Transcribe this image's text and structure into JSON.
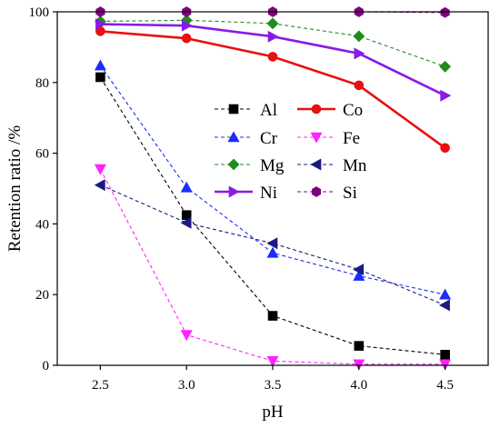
{
  "chart_data": {
    "type": "line",
    "xlabel": "pH",
    "ylabel": "Retention ratio /%",
    "xlim": [
      2.25,
      4.75
    ],
    "ylim": [
      0,
      100
    ],
    "xticks": [
      {
        "value": 2.5,
        "label": "2.5"
      },
      {
        "value": 3.0,
        "label": "3.0"
      },
      {
        "value": 3.5,
        "label": "3.5"
      },
      {
        "value": 4.0,
        "label": "4.0"
      },
      {
        "value": 4.5,
        "label": "4.5"
      }
    ],
    "yticks": [
      {
        "value": 0,
        "label": "0"
      },
      {
        "value": 20,
        "label": "20"
      },
      {
        "value": 40,
        "label": "40"
      },
      {
        "value": 60,
        "label": "60"
      },
      {
        "value": 80,
        "label": "80"
      },
      {
        "value": 100,
        "label": "100"
      }
    ],
    "x": [
      2.5,
      3.0,
      3.5,
      4.0,
      4.5
    ],
    "grid": false,
    "legend_position": "center",
    "series": [
      {
        "name": "Al",
        "values": [
          81.5,
          42.5,
          14,
          5.5,
          3
        ],
        "color": "#000000",
        "marker": "square",
        "dashed": true
      },
      {
        "name": "Co",
        "values": [
          94.5,
          92.5,
          87.3,
          79.2,
          61.5
        ],
        "color": "#e81010",
        "marker": "circle",
        "dashed": false
      },
      {
        "name": "Cr",
        "values": [
          84.8,
          50.3,
          31.8,
          25.3,
          20
        ],
        "color": "#1a2cff",
        "marker": "triangle-up",
        "dashed": true
      },
      {
        "name": "Fe",
        "values": [
          55.5,
          8.6,
          1.2,
          0.3,
          0.3
        ],
        "color": "#ff22ff",
        "marker": "triangle-down",
        "dashed": true
      },
      {
        "name": "Mg",
        "values": [
          97.3,
          97.6,
          96.7,
          93.1,
          84.5
        ],
        "color": "#1e8b1e",
        "marker": "diamond",
        "dashed": true
      },
      {
        "name": "Mn",
        "values": [
          51,
          40.3,
          34.5,
          27.1,
          17
        ],
        "color": "#1a1a80",
        "marker": "triangle-left",
        "dashed": true
      },
      {
        "name": "Ni",
        "values": [
          96.5,
          96.1,
          93,
          88.2,
          76.3
        ],
        "color": "#8a1ae8",
        "marker": "triangle-right",
        "dashed": false
      },
      {
        "name": "Si",
        "values": [
          100,
          100,
          100,
          100,
          99.8
        ],
        "color": "#800080",
        "marker": "hexagon",
        "dashed": true
      }
    ]
  }
}
